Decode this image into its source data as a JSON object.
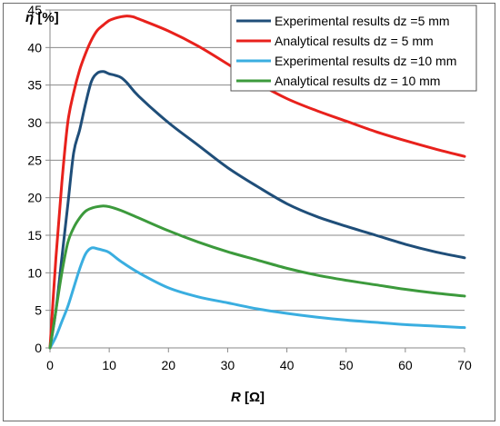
{
  "chart_data": {
    "type": "line",
    "xlabel": {
      "symbol": "R",
      "unit": " [Ω]"
    },
    "ylabel": {
      "symbol": "η",
      "unit": " [%]"
    },
    "xlim": [
      0,
      70
    ],
    "ylim": [
      0,
      45
    ],
    "xticks": [
      0,
      10,
      20,
      30,
      40,
      50,
      60,
      70
    ],
    "yticks": [
      0,
      5,
      10,
      15,
      20,
      25,
      30,
      35,
      40,
      45
    ],
    "grid": true,
    "legend_position": "top-right",
    "series": [
      {
        "name": "Experimental results dz =5 mm",
        "color": "#1f4e79",
        "points": [
          [
            0,
            0
          ],
          [
            1,
            5
          ],
          [
            2,
            12
          ],
          [
            3,
            19
          ],
          [
            4,
            26
          ],
          [
            5,
            29
          ],
          [
            6,
            32.5
          ],
          [
            7,
            35.5
          ],
          [
            8,
            36.6
          ],
          [
            9,
            36.8
          ],
          [
            10,
            36.5
          ],
          [
            11,
            36.3
          ],
          [
            12,
            36.0
          ],
          [
            13,
            35.3
          ],
          [
            15,
            33.5
          ],
          [
            20,
            30.0
          ],
          [
            25,
            27.0
          ],
          [
            30,
            24.0
          ],
          [
            35,
            21.5
          ],
          [
            40,
            19.2
          ],
          [
            45,
            17.5
          ],
          [
            50,
            16.2
          ],
          [
            55,
            15.0
          ],
          [
            60,
            13.8
          ],
          [
            65,
            12.8
          ],
          [
            70,
            12.0
          ]
        ]
      },
      {
        "name": "Analytical results dz = 5 mm",
        "color": "#e8211c",
        "points": [
          [
            0,
            0
          ],
          [
            1,
            12
          ],
          [
            2,
            22
          ],
          [
            3,
            30
          ],
          [
            4,
            34
          ],
          [
            5,
            37
          ],
          [
            6,
            39.2
          ],
          [
            7,
            41
          ],
          [
            8,
            42.3
          ],
          [
            9,
            43
          ],
          [
            10,
            43.6
          ],
          [
            11,
            43.9
          ],
          [
            12,
            44.1
          ],
          [
            13,
            44.2
          ],
          [
            14,
            44.1
          ],
          [
            15,
            43.8
          ],
          [
            20,
            42.2
          ],
          [
            25,
            40.2
          ],
          [
            30,
            37.8
          ],
          [
            35,
            35.3
          ],
          [
            40,
            33.2
          ],
          [
            45,
            31.6
          ],
          [
            50,
            30.2
          ],
          [
            55,
            28.8
          ],
          [
            60,
            27.6
          ],
          [
            65,
            26.5
          ],
          [
            70,
            25.5
          ]
        ]
      },
      {
        "name": "Experimental results dz =10 mm",
        "color": "#3aaee0",
        "points": [
          [
            0,
            0
          ],
          [
            1,
            1.5
          ],
          [
            2,
            3.5
          ],
          [
            3,
            5.5
          ],
          [
            4,
            8
          ],
          [
            5,
            10.5
          ],
          [
            6,
            12.5
          ],
          [
            7,
            13.3
          ],
          [
            8,
            13.2
          ],
          [
            9,
            13.0
          ],
          [
            10,
            12.7
          ],
          [
            12,
            11.5
          ],
          [
            15,
            10.0
          ],
          [
            20,
            8.0
          ],
          [
            25,
            6.8
          ],
          [
            30,
            6.0
          ],
          [
            35,
            5.2
          ],
          [
            40,
            4.6
          ],
          [
            45,
            4.1
          ],
          [
            50,
            3.7
          ],
          [
            55,
            3.4
          ],
          [
            60,
            3.1
          ],
          [
            65,
            2.9
          ],
          [
            70,
            2.7
          ]
        ]
      },
      {
        "name": "Analytical results dz = 10 mm",
        "color": "#3c9a3c",
        "points": [
          [
            0,
            0
          ],
          [
            1,
            5
          ],
          [
            2,
            10
          ],
          [
            3,
            14
          ],
          [
            4,
            16
          ],
          [
            5,
            17.3
          ],
          [
            6,
            18.2
          ],
          [
            7,
            18.6
          ],
          [
            8,
            18.8
          ],
          [
            9,
            18.9
          ],
          [
            10,
            18.8
          ],
          [
            12,
            18.3
          ],
          [
            15,
            17.3
          ],
          [
            20,
            15.6
          ],
          [
            25,
            14.1
          ],
          [
            30,
            12.8
          ],
          [
            35,
            11.7
          ],
          [
            40,
            10.6
          ],
          [
            45,
            9.7
          ],
          [
            50,
            9.0
          ],
          [
            55,
            8.4
          ],
          [
            60,
            7.8
          ],
          [
            65,
            7.3
          ],
          [
            70,
            6.9
          ]
        ]
      }
    ]
  }
}
